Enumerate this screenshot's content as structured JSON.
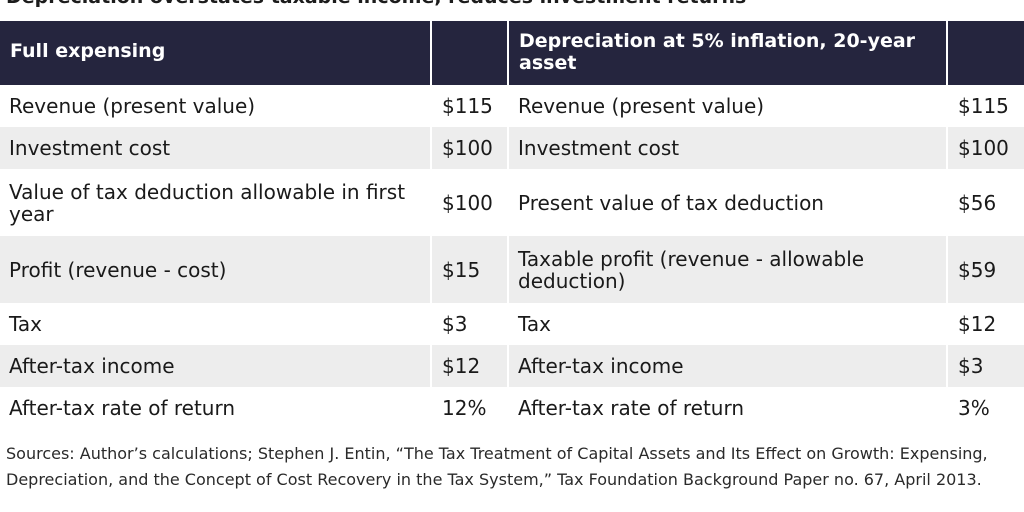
{
  "title": "Depreciation overstates taxable income, reduces investment returns",
  "table": {
    "headers": {
      "left_label": "Full expensing",
      "left_value": "",
      "right_label": "Depreciation at 5% inflation, 20-year asset",
      "right_value": ""
    },
    "rows": [
      {
        "left_label": "Revenue (present value)",
        "left_value": "$115",
        "right_label": "Revenue (present value)",
        "right_value": "$115"
      },
      {
        "left_label": "Investment cost",
        "left_value": "$100",
        "right_label": "Investment cost",
        "right_value": "$100"
      },
      {
        "left_label": "Value of tax deduction allowable in first year",
        "left_value": "$100",
        "right_label": "Present value of tax deduction",
        "right_value": "$56"
      },
      {
        "left_label": "Profit (revenue - cost)",
        "left_value": "$15",
        "right_label": "Taxable profit (revenue - allowable deduction)",
        "right_value": "$59"
      },
      {
        "left_label": "Tax",
        "left_value": "$3",
        "right_label": "Tax",
        "right_value": "$12"
      },
      {
        "left_label": "After-tax income",
        "left_value": "$12",
        "right_label": "After-tax income",
        "right_value": "$3"
      },
      {
        "left_label": "After-tax rate of return",
        "left_value": "12%",
        "right_label": "After-tax rate of return",
        "right_value": "3%"
      }
    ]
  },
  "source": "Sources: Author’s calculations; Stephen J. Entin, “The Tax Treatment of Capital Assets and Its Effect on Growth: Expensing, Depreciation, and the Concept of Cost Recovery in the Tax System,” Tax Foundation Background Paper no. 67, April 2013.",
  "colors": {
    "header_background": "#25253e",
    "stripe_background": "#ededed"
  }
}
